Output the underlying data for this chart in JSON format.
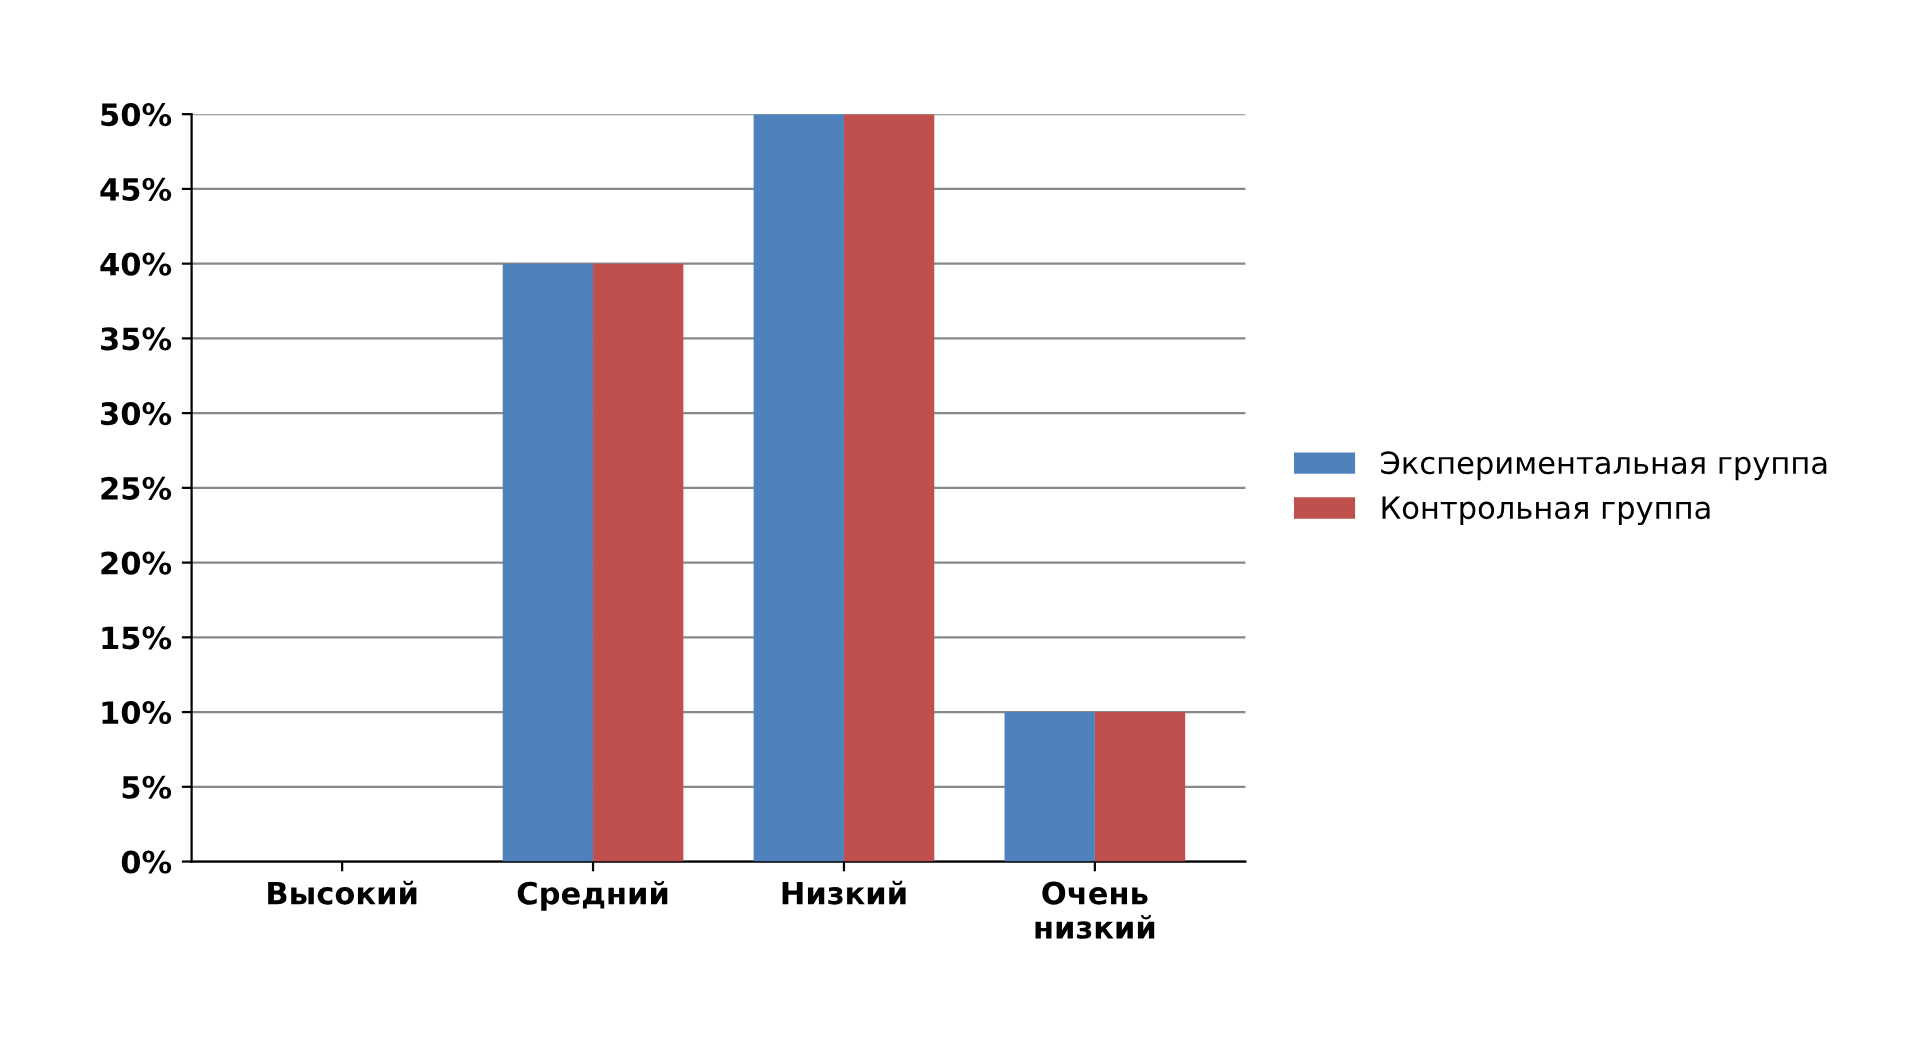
{
  "chart_data": {
    "type": "bar",
    "categories": [
      "Высокий",
      "Средний",
      "Низкий",
      "Очень\nнизкий"
    ],
    "series": [
      {
        "name": "Экспериментальная группа",
        "color": "#4f81bd",
        "values": [
          0,
          40,
          50,
          10
        ]
      },
      {
        "name": "Контрольная группа",
        "color": "#c0504d",
        "values": [
          0,
          40,
          50,
          10
        ]
      }
    ],
    "ylim": [
      0,
      50
    ],
    "yticks": [
      {
        "value": 0,
        "label": "0%"
      },
      {
        "value": 5,
        "label": "5%"
      },
      {
        "value": 10,
        "label": "10%"
      },
      {
        "value": 15,
        "label": "15%"
      },
      {
        "value": 20,
        "label": "20%"
      },
      {
        "value": 25,
        "label": "25%"
      },
      {
        "value": 30,
        "label": "30%"
      },
      {
        "value": 35,
        "label": "35%"
      },
      {
        "value": 40,
        "label": "40%"
      },
      {
        "value": 45,
        "label": "45%"
      },
      {
        "value": 50,
        "label": "50%"
      }
    ],
    "grid": "y",
    "legend": "right"
  }
}
